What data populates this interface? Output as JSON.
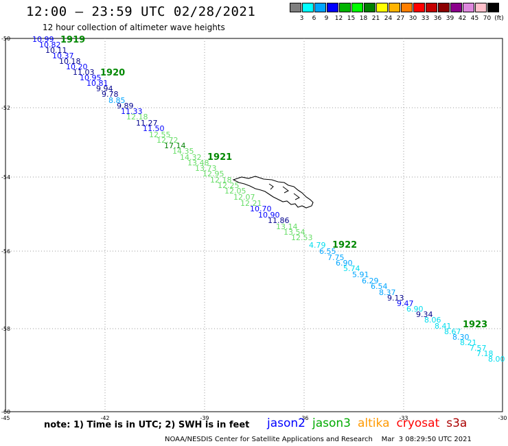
{
  "title": "12:00 – 23:59 UTC 02/28/2021",
  "subtitle": "12 hour collection of altimeter wave heights",
  "colorbar": {
    "colors": [
      "#7f7f7f",
      "#00ffff",
      "#00a5ff",
      "#0000ff",
      "#00b300",
      "#00ff00",
      "#008000",
      "#ffff00",
      "#ffb300",
      "#ff7f00",
      "#ff0000",
      "#c40000",
      "#8b0000",
      "#8b008b",
      "#dd88dd",
      "#ffc0cb",
      "#000000"
    ],
    "labels": [
      "3",
      "6",
      "9",
      "12",
      "15",
      "18",
      "21",
      "24",
      "27",
      "30",
      "33",
      "36",
      "39",
      "42",
      "45",
      "70"
    ],
    "unit": "(ft)"
  },
  "axes": {
    "y_labels": [
      "-50",
      "-52",
      "-54",
      "-56",
      "-58",
      "-60"
    ],
    "x_labels": [
      "-45",
      "-42",
      "-39",
      "-36",
      "-33",
      "-30"
    ]
  },
  "pass_labels": [
    "1919",
    "1920",
    "1921",
    "1922",
    "1923"
  ],
  "observations": [
    {
      "v": "10.99",
      "c": "#0000ff"
    },
    {
      "v": "10.82",
      "c": "#0000ff"
    },
    {
      "v": "10.11",
      "c": "#00008b"
    },
    {
      "v": "10.37",
      "c": "#0000ff"
    },
    {
      "v": "10.18",
      "c": "#00008b"
    },
    {
      "v": "10.20",
      "c": "#0000ff"
    },
    {
      "v": "11.03",
      "c": "#00008b"
    },
    {
      "v": "10.95",
      "c": "#0000ff"
    },
    {
      "v": "10.81",
      "c": "#0000ff"
    },
    {
      "v": "9.94",
      "c": "#00008b"
    },
    {
      "v": "9.78",
      "c": "#00008b"
    },
    {
      "v": "8.85",
      "c": "#00a5ff"
    },
    {
      "v": "9.89",
      "c": "#00008b"
    },
    {
      "v": "11.33",
      "c": "#0000ff"
    },
    {
      "v": "12.18",
      "c": "#66dd66"
    },
    {
      "v": "11.27",
      "c": "#00008b"
    },
    {
      "v": "11.50",
      "c": "#0000ff"
    },
    {
      "v": "12.55",
      "c": "#66dd66"
    },
    {
      "v": "12.72",
      "c": "#66dd66"
    },
    {
      "v": "17.14",
      "c": "#008000"
    },
    {
      "v": "14.35",
      "c": "#66dd66"
    },
    {
      "v": "14.32",
      "c": "#66dd66"
    },
    {
      "v": "13.48",
      "c": "#66dd66"
    },
    {
      "v": "13.73",
      "c": "#66dd66"
    },
    {
      "v": "12.95",
      "c": "#66dd66"
    },
    {
      "v": "12.18",
      "c": "#66dd66"
    },
    {
      "v": "12.25",
      "c": "#66dd66"
    },
    {
      "v": "12.05",
      "c": "#66dd66"
    },
    {
      "v": "12.07",
      "c": "#66dd66"
    },
    {
      "v": "12.21",
      "c": "#66dd66"
    },
    {
      "v": "10.70",
      "c": "#0000ff"
    },
    {
      "v": "10.90",
      "c": "#0000ff"
    },
    {
      "v": "11.86",
      "c": "#00008b"
    },
    {
      "v": "13.14",
      "c": "#66dd66"
    },
    {
      "v": "13.54",
      "c": "#66dd66"
    },
    {
      "v": "12.53",
      "c": "#66dd66"
    },
    {
      "v": "4.79",
      "c": "#00ddee"
    },
    {
      "v": "6.55",
      "c": "#00a5ff"
    },
    {
      "v": "7.75",
      "c": "#00a5ff"
    },
    {
      "v": "6.90",
      "c": "#00a5ff"
    },
    {
      "v": "5.74",
      "c": "#00ddee"
    },
    {
      "v": "5.91",
      "c": "#00a5ff"
    },
    {
      "v": "6.29",
      "c": "#00a5ff"
    },
    {
      "v": "6.54",
      "c": "#00a5ff"
    },
    {
      "v": "8.37",
      "c": "#00a5ff"
    },
    {
      "v": "9.13",
      "c": "#00008b"
    },
    {
      "v": "9.47",
      "c": "#0000ff"
    },
    {
      "v": "6.90",
      "c": "#00ddee"
    },
    {
      "v": "9.34",
      "c": "#00008b"
    },
    {
      "v": "8.06",
      "c": "#00ddee"
    },
    {
      "v": "8.41",
      "c": "#00ddee"
    },
    {
      "v": "8.67",
      "c": "#00ddee"
    },
    {
      "v": "8.30",
      "c": "#00a5ff"
    },
    {
      "v": "8.21",
      "c": "#00ddee"
    },
    {
      "v": "7.57",
      "c": "#00ddee"
    },
    {
      "v": "7.18",
      "c": "#00ddee"
    },
    {
      "v": "8.00",
      "c": "#00ddee"
    }
  ],
  "note": "note: 1) Time is in UTC; 2) SWH is in feet",
  "legend": [
    {
      "name": "jason2",
      "color": "#0000ff"
    },
    {
      "name": "jason3",
      "color": "#00aa00"
    },
    {
      "name": "altika",
      "color": "#ff9900"
    },
    {
      "name": "cryosat",
      "color": "#ff0000"
    },
    {
      "name": "s3a",
      "color": "#aa0000"
    }
  ],
  "credit": "NOAA/NESDIS Center for Satellite Applications and Research    Mar  3 08:29:50 UTC 2021"
}
